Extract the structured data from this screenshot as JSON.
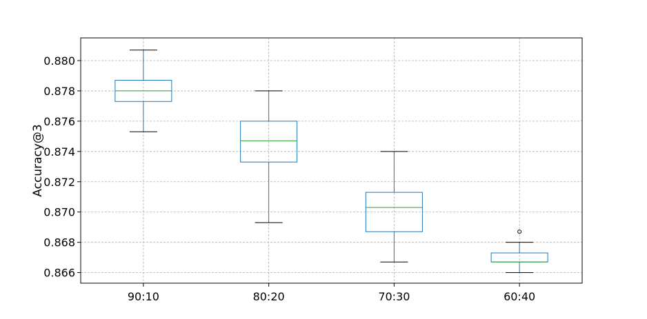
{
  "chart_data": {
    "type": "box",
    "title": "",
    "xlabel": "",
    "ylabel": "Accuracy@3",
    "ylim": [
      0.8653,
      0.8815
    ],
    "yticks": [
      "0.866",
      "0.868",
      "0.870",
      "0.872",
      "0.874",
      "0.876",
      "0.878",
      "0.880"
    ],
    "grid": true,
    "categories": [
      "90:10",
      "80:20",
      "70:30",
      "60:40"
    ],
    "boxes": [
      {
        "category": "90:10",
        "whisker_low": 0.8753,
        "q1": 0.8773,
        "median": 0.878,
        "q3": 0.8787,
        "whisker_high": 0.8807,
        "outliers": []
      },
      {
        "category": "80:20",
        "whisker_low": 0.8693,
        "q1": 0.8733,
        "median": 0.8747,
        "q3": 0.876,
        "whisker_high": 0.878,
        "outliers": []
      },
      {
        "category": "70:30",
        "whisker_low": 0.8667,
        "q1": 0.8687,
        "median": 0.8703,
        "q3": 0.8713,
        "whisker_high": 0.874,
        "outliers": []
      },
      {
        "category": "60:40",
        "whisker_low": 0.866,
        "q1": 0.8667,
        "median": 0.8667,
        "q3": 0.8673,
        "whisker_high": 0.868,
        "outliers": [
          0.8687
        ]
      }
    ],
    "colors": {
      "box": "#1f77b4",
      "median": "#2ca02c",
      "whisker_cap": "#000000",
      "grid": "#b0b0b0"
    }
  }
}
